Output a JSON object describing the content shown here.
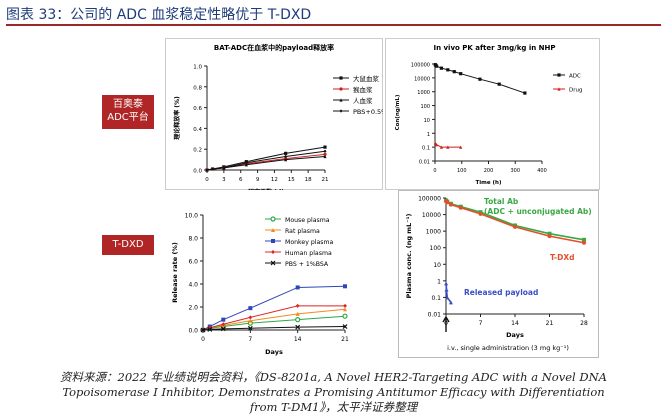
{
  "title": "图表 33：公司的 ADC 血浆稳定性略优于 T-DXD",
  "labels": {
    "top": [
      "百奥泰",
      "ADC平台"
    ],
    "bottom": "T-DXD"
  },
  "source": [
    "资料来源：2022 年业绩说明会资料，《DS-8201a, A Novel HER2-Targeting ADC with a Novel DNA",
    "Topoisomerase I Inhibitor, Demonstrates a Promising Antitumor Efficacy with Differentiation",
    "from T-DM1》，太平洋证券整理"
  ],
  "colors": {
    "accent_red": "#b02525",
    "title_blue": "#1f3c7a"
  },
  "chart_data": [
    {
      "type": "line",
      "title": "BAT-ADC在血浆中的payload释放率",
      "xlabel": "研究天数 (d)",
      "ylabel": "理论释放率 (%)",
      "x": [
        0,
        1,
        3,
        7,
        14,
        21
      ],
      "xticks": [
        0,
        3,
        6,
        9,
        12,
        15,
        18,
        21
      ],
      "ylim": [
        0,
        1.0
      ],
      "yticks": [
        "0.0",
        "0.2",
        "0.4",
        "0.6",
        "0.8",
        "1.0"
      ],
      "legend_position": "top-right",
      "series": [
        {
          "name": "大鼠血浆",
          "color": "#111111",
          "marker": "square",
          "values": [
            0.0,
            0.01,
            0.03,
            0.08,
            0.16,
            0.22
          ]
        },
        {
          "name": "猴血浆",
          "color": "#d01d1d",
          "marker": "circle",
          "values": [
            0.0,
            0.01,
            0.02,
            0.06,
            0.11,
            0.15
          ]
        },
        {
          "name": "人血浆",
          "color": "#111111",
          "marker": "triangle",
          "values": [
            0.0,
            0.01,
            0.02,
            0.05,
            0.1,
            0.13
          ]
        },
        {
          "name": "PBS+0.5%BSA",
          "color": "#111111",
          "marker": "diamond",
          "values": [
            0.0,
            0.01,
            0.02,
            0.07,
            0.13,
            0.18
          ]
        }
      ]
    },
    {
      "type": "line",
      "title": "In vivo PK after 3mg/kg in NHP",
      "xlabel": "Time (h)",
      "ylabel": "Con(ng/mL)",
      "scale_y": "log",
      "xlim": [
        0,
        400
      ],
      "xticks": [
        0,
        100,
        200,
        300,
        400
      ],
      "yticks": [
        "0.01",
        "0.1",
        "1",
        "10",
        "100",
        "1000",
        "10000",
        "100000"
      ],
      "legend_position": "right",
      "series": [
        {
          "name": "ADC",
          "color": "#111111",
          "marker": "square",
          "x": [
            1,
            3,
            6,
            24,
            48,
            72,
            96,
            168,
            240,
            336
          ],
          "values": [
            90000,
            80000,
            70000,
            50000,
            38000,
            28000,
            20000,
            8000,
            3500,
            800
          ]
        },
        {
          "name": "Drug",
          "color": "#d01d1d",
          "marker": "triangle",
          "x": [
            1,
            6,
            24,
            48,
            96
          ],
          "values": [
            0.2,
            0.15,
            0.1,
            0.1,
            0.1
          ]
        }
      ]
    },
    {
      "type": "line",
      "xlabel": "Days",
      "ylabel": "Release rate (%)",
      "x": [
        0,
        1,
        3,
        7,
        14,
        21
      ],
      "xticks": [
        0,
        7,
        14,
        21
      ],
      "ylim": [
        0,
        10
      ],
      "yticks": [
        "0.0",
        "2.0",
        "4.0",
        "6.0",
        "8.0",
        "10.0"
      ],
      "legend_position": "top-right",
      "series": [
        {
          "name": "Mouse plasma",
          "color": "#2ba84a",
          "marker": "circle-open",
          "values": [
            0,
            0.15,
            0.3,
            0.6,
            0.9,
            1.2
          ]
        },
        {
          "name": "Rat plasma",
          "color": "#f08c1a",
          "marker": "triangle",
          "values": [
            0,
            0.2,
            0.4,
            0.8,
            1.4,
            1.8
          ]
        },
        {
          "name": "Monkey plasma",
          "color": "#2e47b8",
          "marker": "square",
          "values": [
            0,
            0.3,
            0.9,
            1.9,
            3.7,
            3.8
          ]
        },
        {
          "name": "Human plasma",
          "color": "#e02525",
          "marker": "diamond",
          "values": [
            0,
            0.2,
            0.5,
            1.1,
            2.1,
            2.1
          ]
        },
        {
          "name": "PBS + 1%BSA",
          "color": "#111111",
          "marker": "x",
          "values": [
            0,
            0.05,
            0.1,
            0.15,
            0.25,
            0.3
          ]
        }
      ]
    },
    {
      "type": "line",
      "xlabel": "Days",
      "ylabel": "Plasma conc. (ng mL⁻¹)",
      "scale_y": "log",
      "xlim": [
        0,
        28
      ],
      "xticks": [
        0,
        7,
        14,
        21,
        28
      ],
      "yticks": [
        "0.01",
        "0.1",
        "1",
        "10",
        "100",
        "1000",
        "10000",
        "100000"
      ],
      "annotations": [
        "Total Ab",
        "(ADC + unconjugated Ab)",
        "T-DXd",
        "Released payload",
        "i.v., single administration (3 mg kg⁻¹)"
      ],
      "series": [
        {
          "name": "Total Ab",
          "color": "#3aa845",
          "marker": "square",
          "x": [
            0.02,
            0.25,
            1,
            3,
            7,
            14,
            21,
            28
          ],
          "values": [
            70000,
            60000,
            45000,
            30000,
            14000,
            2200,
            700,
            300
          ]
        },
        {
          "name": "T-DXd",
          "color": "#e0502a",
          "marker": "circle",
          "x": [
            0.02,
            0.25,
            1,
            3,
            7,
            14,
            21,
            28
          ],
          "values": [
            65000,
            55000,
            40000,
            26000,
            11000,
            1800,
            500,
            200
          ]
        },
        {
          "name": "Released payload",
          "color": "#3b4fc6",
          "marker": "triangle",
          "x": [
            0.02,
            0.1,
            0.25,
            1
          ],
          "values": [
            0.7,
            0.3,
            0.1,
            0.05
          ]
        }
      ]
    }
  ]
}
